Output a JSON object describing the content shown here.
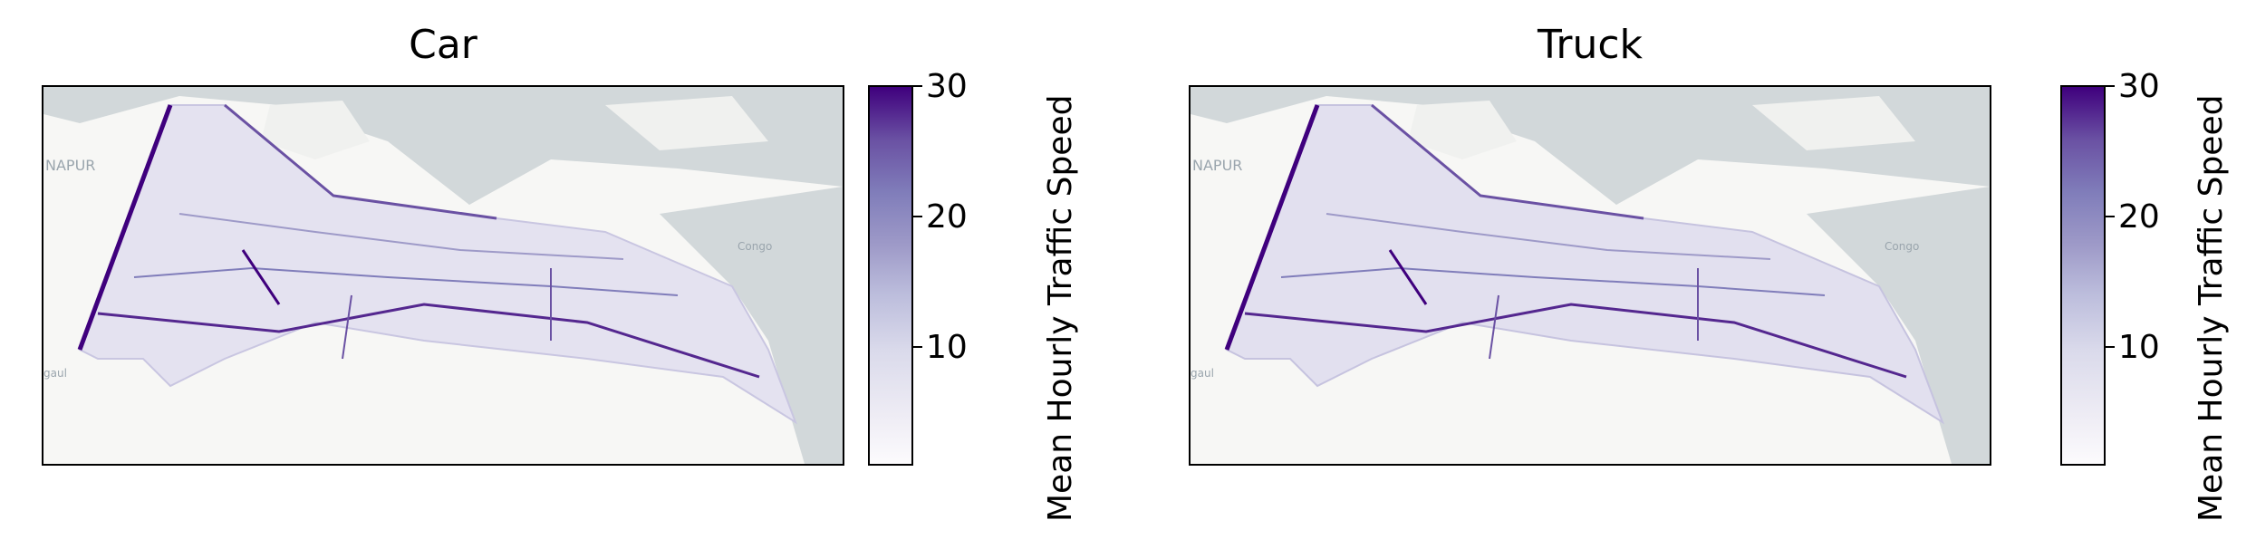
{
  "panels": [
    {
      "title": "Car"
    },
    {
      "title": "Truck"
    }
  ],
  "colorbar": {
    "label": "Mean Hourly Traffic Speed",
    "ticks": [
      "10",
      "20",
      "30"
    ],
    "colormap": "Purples",
    "range": [
      0,
      30
    ]
  },
  "basemap": {
    "places": [
      "NAPUR",
      "Congo",
      "gaul"
    ],
    "water_color": "#d2d8da",
    "land_color": "#f7f7f5"
  },
  "colors": {
    "low": "#fcfbfd",
    "mid": "#9e9ac8",
    "high": "#3f007d"
  }
}
